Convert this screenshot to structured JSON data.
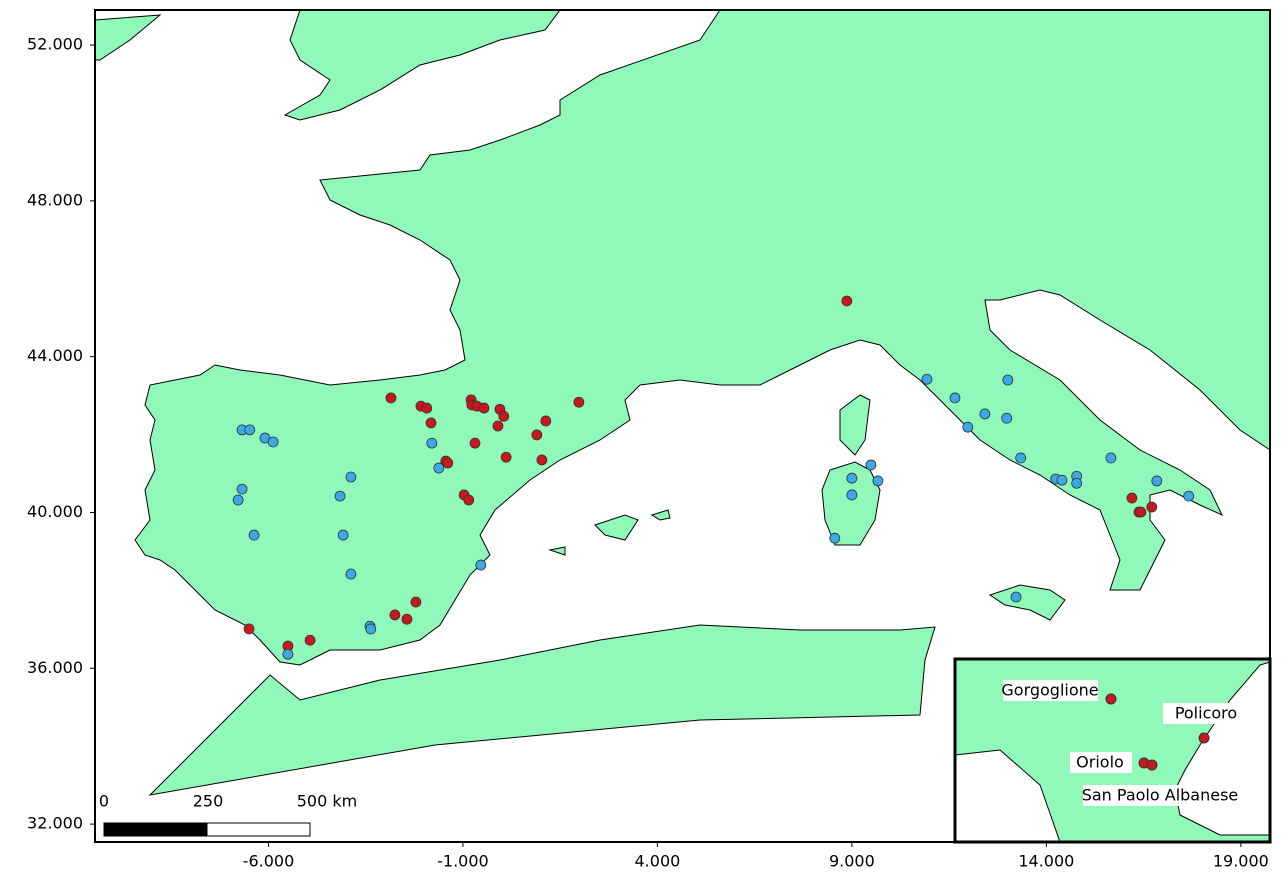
{
  "chart_data": {
    "type": "scatter",
    "xlim": [
      -10.46,
      19.75
    ],
    "ylim": [
      31.54,
      52.9
    ],
    "xticks": [
      {
        "value": -6,
        "label": "-6.000"
      },
      {
        "value": -1,
        "label": "-1.000"
      },
      {
        "value": 4,
        "label": "4.000"
      },
      {
        "value": 9,
        "label": "9.000"
      },
      {
        "value": 14,
        "label": "14.000"
      },
      {
        "value": 19,
        "label": "19.000"
      }
    ],
    "yticks": [
      {
        "value": 32,
        "label": "32.000"
      },
      {
        "value": 36,
        "label": "36.000"
      },
      {
        "value": 40,
        "label": "40.000"
      },
      {
        "value": 44,
        "label": "44.000"
      },
      {
        "value": 48,
        "label": "48.000"
      },
      {
        "value": 52,
        "label": "52.000"
      }
    ],
    "series": [
      {
        "color": "#c8181e",
        "x": [
          8.87,
          -2.85,
          -2.08,
          -1.93,
          -1.82,
          -0.79,
          -0.77,
          -0.64,
          -0.46,
          -0.05,
          0.05,
          -0.1,
          -0.69,
          -1.44,
          -1.39,
          0.11,
          0.9,
          1.13,
          1.98,
          1.03,
          -0.97,
          -0.85,
          -6.5,
          -5.5,
          -4.93,
          -2.75,
          -2.44,
          -2.21,
          16.2,
          16.38,
          16.43,
          16.71
        ],
        "y": [
          45.43,
          42.94,
          42.73,
          42.68,
          42.3,
          42.89,
          42.76,
          42.73,
          42.68,
          42.65,
          42.47,
          42.22,
          41.78,
          41.32,
          41.27,
          41.42,
          41.99,
          42.35,
          42.83,
          41.35,
          40.45,
          40.32,
          37.01,
          36.57,
          36.72,
          37.37,
          37.26,
          37.7,
          40.37,
          40.01,
          40.01,
          40.14
        ]
      },
      {
        "color": "#3ca9e6",
        "x": [
          -6.68,
          -6.48,
          -6.09,
          -5.88,
          -6.68,
          -6.78,
          -6.37,
          -5.5,
          -4.16,
          -3.88,
          -4.08,
          -3.88,
          -3.39,
          -3.37,
          -1.8,
          -1.62,
          -0.54,
          8.56,
          9.0,
          9.49,
          9.67,
          9.0,
          10.93,
          11.65,
          11.98,
          12.42,
          13.01,
          12.98,
          13.34,
          14.24,
          14.4,
          14.78,
          14.78,
          15.66,
          16.84,
          17.66,
          13.22
        ],
        "y": [
          42.12,
          42.12,
          41.91,
          41.81,
          40.6,
          40.32,
          39.42,
          36.36,
          40.42,
          40.91,
          39.42,
          38.42,
          37.08,
          37.01,
          41.78,
          41.14,
          38.65,
          39.34,
          40.88,
          41.22,
          40.81,
          40.45,
          43.42,
          42.94,
          42.19,
          42.53,
          43.4,
          42.42,
          41.4,
          40.86,
          40.83,
          40.93,
          40.75,
          41.4,
          40.81,
          40.42,
          37.83
        ]
      }
    ]
  },
  "scale_bar": {
    "labels": [
      "0",
      "250",
      "500 km"
    ]
  },
  "inset": {
    "labels": [
      "Gorgoglione",
      "Policoro",
      "Oriolo",
      "San Paolo Albanese"
    ]
  }
}
